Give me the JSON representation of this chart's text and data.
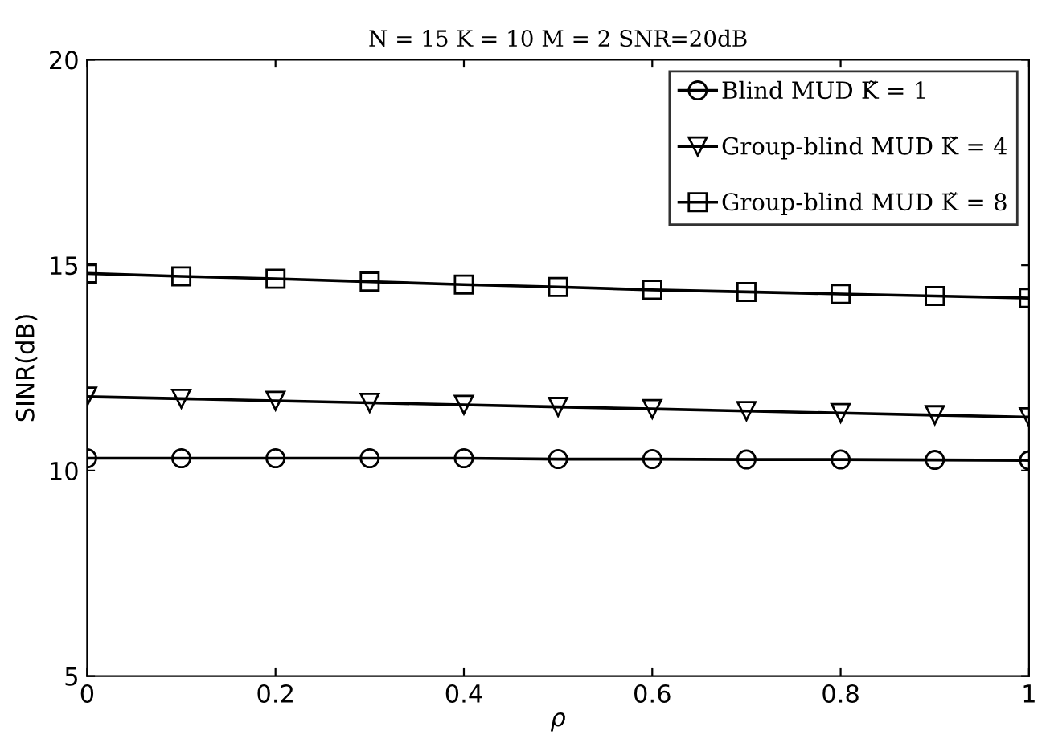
{
  "chart_data": {
    "type": "line",
    "title": "N = 15 K = 10 M = 2 SNR=20dB",
    "xlabel": "ρ",
    "ylabel": "SINR(dB)",
    "x": [
      0,
      0.1,
      0.2,
      0.3,
      0.4,
      0.5,
      0.6,
      0.7,
      0.8,
      0.9,
      1
    ],
    "series": [
      {
        "name": "Blind MUD K̃ = 1",
        "color": "#000000",
        "marker": "circle",
        "values": [
          10.3,
          10.3,
          10.3,
          10.3,
          10.3,
          10.28,
          10.28,
          10.27,
          10.27,
          10.26,
          10.25
        ]
      },
      {
        "name": "Group-blind MUD K̃ = 4",
        "color": "#000000",
        "marker": "triangle",
        "values": [
          11.8,
          11.75,
          11.7,
          11.65,
          11.6,
          11.55,
          11.5,
          11.45,
          11.4,
          11.35,
          11.3
        ]
      },
      {
        "name": "Group-blind MUD K̃ = 8",
        "color": "#000000",
        "marker": "square",
        "values": [
          14.8,
          14.73,
          14.67,
          14.6,
          14.53,
          14.47,
          14.4,
          14.35,
          14.3,
          14.25,
          14.2
        ]
      }
    ],
    "xlim": [
      0,
      1
    ],
    "xticks": [
      0,
      0.2,
      0.4,
      0.6,
      0.8,
      1
    ],
    "ylim": [
      5,
      20
    ],
    "yticks": [
      5,
      10,
      15,
      20
    ],
    "grid": false,
    "legend": "top right",
    "line_style": "solid"
  }
}
